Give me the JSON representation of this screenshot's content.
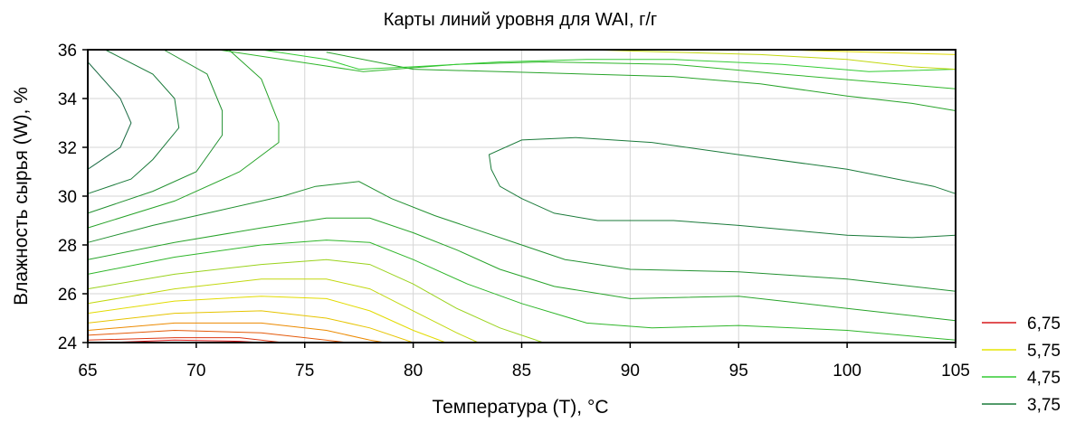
{
  "chart_data": {
    "type": "contour",
    "title": "Карты линий уровня для WAI, г/г",
    "xlabel": "Температура (T), °C",
    "ylabel": "Влажность сырья (W), %",
    "xlim": [
      65,
      105
    ],
    "ylim": [
      24,
      36
    ],
    "xticks": [
      "65",
      "70",
      "75",
      "80",
      "85",
      "90",
      "95",
      "100",
      "105"
    ],
    "yticks": [
      "24",
      "26",
      "28",
      "30",
      "32",
      "34",
      "36"
    ],
    "grid": true,
    "legend_position": "bottom-right",
    "legend": [
      {
        "label": "6,75",
        "color": "#d7191c"
      },
      {
        "label": "5,75",
        "color": "#e6e600"
      },
      {
        "label": "4,75",
        "color": "#33cc33"
      },
      {
        "label": "3,75",
        "color": "#1a7a3a"
      }
    ],
    "levels": [
      {
        "level": 3.5,
        "color": "#1b6b44",
        "points": [
          [
            65,
            35.5
          ],
          [
            66.5,
            34
          ],
          [
            67,
            33
          ],
          [
            66.5,
            32
          ],
          [
            65,
            31.1
          ]
        ]
      },
      {
        "level": 3.75,
        "color": "#1a7a3a",
        "points": [
          [
            65.8,
            36
          ],
          [
            68,
            35
          ],
          [
            69,
            34
          ],
          [
            69.2,
            32.8
          ],
          [
            68,
            31.5
          ],
          [
            67,
            30.7
          ],
          [
            65,
            30.1
          ]
        ]
      },
      {
        "level": 4.0,
        "color": "#219030",
        "points": [
          [
            68.5,
            36
          ],
          [
            70.5,
            35
          ],
          [
            71.2,
            33.5
          ],
          [
            71.2,
            32.5
          ],
          [
            70,
            31
          ],
          [
            68,
            30.2
          ],
          [
            65,
            29.3
          ]
        ]
      },
      {
        "level": 4.25,
        "color": "#27a329",
        "points": [
          [
            71.5,
            36
          ],
          [
            73,
            34.8
          ],
          [
            73.8,
            33
          ],
          [
            73.8,
            32.2
          ],
          [
            72,
            31
          ],
          [
            69,
            29.8
          ],
          [
            65,
            28.7
          ]
        ]
      },
      {
        "level": 4.25,
        "color": "#27a329",
        "points": [
          [
            76,
            35.9
          ],
          [
            80,
            35.2
          ],
          [
            84,
            35.1
          ],
          [
            88,
            35
          ],
          [
            92,
            34.9
          ],
          [
            96,
            34.6
          ],
          [
            100,
            34.1
          ],
          [
            103,
            33.8
          ],
          [
            105,
            33.5
          ]
        ]
      },
      {
        "level": 4.5,
        "color": "#2fb62a",
        "points": [
          [
            71,
            36
          ],
          [
            75.5,
            35.4
          ],
          [
            77.7,
            35.1
          ],
          [
            82,
            35.4
          ],
          [
            86,
            35.5
          ],
          [
            92,
            35.4
          ],
          [
            97,
            35
          ],
          [
            101,
            34.7
          ],
          [
            105,
            34.4
          ]
        ]
      },
      {
        "level": 4.75,
        "color": "#33cc33",
        "points": [
          [
            73,
            36
          ],
          [
            76,
            35.6
          ],
          [
            77.5,
            35.2
          ],
          [
            80,
            35.3
          ],
          [
            84,
            35.5
          ],
          [
            88,
            35.6
          ],
          [
            92,
            35.6
          ],
          [
            97,
            35.4
          ],
          [
            101,
            35.1
          ],
          [
            105,
            35.2
          ]
        ]
      },
      {
        "level": 4.0,
        "color": "#219030",
        "points": [
          [
            65,
            28.1
          ],
          [
            68,
            28.8
          ],
          [
            71,
            29.4
          ],
          [
            74,
            30
          ],
          [
            75.5,
            30.4
          ],
          [
            77.5,
            30.6
          ],
          [
            79,
            29.9
          ],
          [
            81,
            29.2
          ],
          [
            83,
            28.6
          ],
          [
            85,
            28
          ],
          [
            87,
            27.4
          ],
          [
            90,
            27
          ],
          [
            95,
            26.9
          ],
          [
            100,
            26.6
          ],
          [
            105,
            26.1
          ]
        ]
      },
      {
        "level": 3.75,
        "color": "#1a7a3a",
        "points": [
          [
            105,
            30.1
          ],
          [
            104,
            30.4
          ],
          [
            100,
            31.1
          ],
          [
            95,
            31.7
          ],
          [
            91,
            32.2
          ],
          [
            87.5,
            32.4
          ],
          [
            85,
            32.3
          ],
          [
            83.5,
            31.7
          ],
          [
            83.6,
            31.1
          ],
          [
            84,
            30.4
          ],
          [
            85,
            29.9
          ],
          [
            86.5,
            29.3
          ],
          [
            88.5,
            29
          ],
          [
            92,
            29
          ],
          [
            95,
            28.8
          ],
          [
            100,
            28.4
          ],
          [
            103,
            28.3
          ],
          [
            105,
            28.4
          ]
        ]
      },
      {
        "level": 4.25,
        "color": "#27a329",
        "points": [
          [
            65,
            27.4
          ],
          [
            69,
            28.1
          ],
          [
            73,
            28.7
          ],
          [
            76,
            29.1
          ],
          [
            78,
            29.1
          ],
          [
            80,
            28.5
          ],
          [
            82,
            27.8
          ],
          [
            84,
            27
          ],
          [
            86.5,
            26.3
          ],
          [
            90,
            25.8
          ],
          [
            95,
            25.9
          ],
          [
            100,
            25.4
          ],
          [
            105,
            24.9
          ]
        ]
      },
      {
        "level": 4.5,
        "color": "#2fb62a",
        "points": [
          [
            65,
            26.8
          ],
          [
            69,
            27.5
          ],
          [
            73,
            28
          ],
          [
            76,
            28.2
          ],
          [
            78,
            28.1
          ],
          [
            80,
            27.4
          ],
          [
            82.5,
            26.4
          ],
          [
            85,
            25.6
          ],
          [
            88,
            24.8
          ],
          [
            91,
            24.6
          ],
          [
            95,
            24.7
          ],
          [
            100,
            24.5
          ],
          [
            105,
            24.1
          ]
        ]
      },
      {
        "level": 5.0,
        "color": "#9ad21c",
        "points": [
          [
            65,
            26.2
          ],
          [
            69,
            26.8
          ],
          [
            73,
            27.2
          ],
          [
            76,
            27.4
          ],
          [
            78,
            27.2
          ],
          [
            80,
            26.4
          ],
          [
            82,
            25.4
          ],
          [
            84,
            24.6
          ],
          [
            86,
            24
          ]
        ]
      },
      {
        "level": 5.25,
        "color": "#c2d80f",
        "points": [
          [
            65,
            25.6
          ],
          [
            69,
            26.2
          ],
          [
            73,
            26.6
          ],
          [
            76,
            26.6
          ],
          [
            78,
            26.2
          ],
          [
            80,
            25.3
          ],
          [
            82,
            24.4
          ],
          [
            83,
            24
          ]
        ]
      },
      {
        "level": 5.5,
        "color": "#e2db00",
        "points": [
          [
            65,
            25.2
          ],
          [
            69,
            25.7
          ],
          [
            73,
            25.9
          ],
          [
            76,
            25.8
          ],
          [
            78,
            25.3
          ],
          [
            80,
            24.5
          ],
          [
            81.5,
            24
          ]
        ]
      },
      {
        "level": 5.75,
        "color": "#e6c400",
        "points": [
          [
            65,
            24.8
          ],
          [
            69,
            25.2
          ],
          [
            73,
            25.3
          ],
          [
            76,
            25
          ],
          [
            78,
            24.6
          ],
          [
            80,
            24
          ],
          [
            80.5,
            24
          ]
        ]
      },
      {
        "level": 6.0,
        "color": "#ec8a00",
        "points": [
          [
            65,
            24.5
          ],
          [
            69,
            24.8
          ],
          [
            73,
            24.8
          ],
          [
            76,
            24.5
          ],
          [
            78,
            24.1
          ],
          [
            78.7,
            24
          ]
        ]
      },
      {
        "level": 6.25,
        "color": "#e45a0a",
        "points": [
          [
            65,
            24.3
          ],
          [
            69,
            24.5
          ],
          [
            73,
            24.4
          ],
          [
            75,
            24.2
          ],
          [
            77,
            24
          ]
        ]
      },
      {
        "level": 6.5,
        "color": "#dc3513",
        "points": [
          [
            65,
            24.1
          ],
          [
            69,
            24.2
          ],
          [
            72,
            24.2
          ],
          [
            74,
            24
          ],
          [
            75,
            24
          ]
        ]
      },
      {
        "level": 6.75,
        "color": "#d7191c",
        "points": [
          [
            66,
            24
          ],
          [
            69,
            24.1
          ],
          [
            72,
            24.05
          ],
          [
            73,
            24
          ]
        ]
      },
      {
        "level": 5.25,
        "color": "#c2d80f",
        "points": [
          [
            88,
            36
          ],
          [
            92,
            35.9
          ],
          [
            96,
            35.8
          ],
          [
            100,
            35.6
          ],
          [
            103,
            35.3
          ],
          [
            105,
            35.2
          ]
        ]
      },
      {
        "level": 5.5,
        "color": "#e2db00",
        "points": [
          [
            97,
            36
          ],
          [
            101,
            35.9
          ],
          [
            105,
            35.8
          ]
        ]
      }
    ]
  }
}
